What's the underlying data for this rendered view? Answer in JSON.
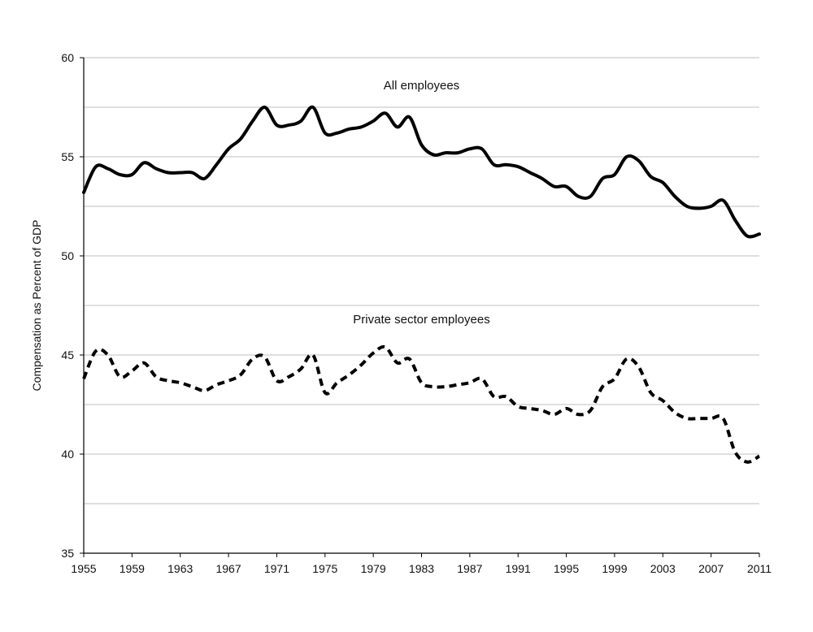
{
  "chart_data": {
    "type": "line",
    "title": "",
    "xlabel": "",
    "ylabel": "Compensation as Percent of GDP",
    "xlim": [
      1955,
      2011
    ],
    "ylim": [
      35,
      60
    ],
    "grid": true,
    "legend": "none",
    "x_ticks": [
      1955,
      1959,
      1963,
      1967,
      1971,
      1975,
      1979,
      1983,
      1987,
      1991,
      1995,
      1999,
      2003,
      2007,
      2011
    ],
    "y_ticks": [
      35,
      40,
      45,
      50,
      55,
      60
    ],
    "series": [
      {
        "name": "All employees",
        "style": "solid",
        "color": "#000000",
        "points": [
          [
            1955,
            53.2
          ],
          [
            1956,
            54.5
          ],
          [
            1957,
            54.4
          ],
          [
            1958,
            54.1
          ],
          [
            1959,
            54.1
          ],
          [
            1960,
            54.7
          ],
          [
            1961,
            54.4
          ],
          [
            1962,
            54.2
          ],
          [
            1963,
            54.2
          ],
          [
            1964,
            54.2
          ],
          [
            1965,
            53.9
          ],
          [
            1966,
            54.6
          ],
          [
            1967,
            55.4
          ],
          [
            1968,
            55.9
          ],
          [
            1969,
            56.8
          ],
          [
            1970,
            57.5
          ],
          [
            1971,
            56.6
          ],
          [
            1972,
            56.6
          ],
          [
            1973,
            56.8
          ],
          [
            1974,
            57.5
          ],
          [
            1975,
            56.2
          ],
          [
            1976,
            56.2
          ],
          [
            1977,
            56.4
          ],
          [
            1978,
            56.5
          ],
          [
            1979,
            56.8
          ],
          [
            1980,
            57.2
          ],
          [
            1981,
            56.5
          ],
          [
            1982,
            57.0
          ],
          [
            1983,
            55.6
          ],
          [
            1984,
            55.1
          ],
          [
            1985,
            55.2
          ],
          [
            1986,
            55.2
          ],
          [
            1987,
            55.4
          ],
          [
            1988,
            55.4
          ],
          [
            1989,
            54.6
          ],
          [
            1990,
            54.6
          ],
          [
            1991,
            54.5
          ],
          [
            1992,
            54.2
          ],
          [
            1993,
            53.9
          ],
          [
            1994,
            53.5
          ],
          [
            1995,
            53.5
          ],
          [
            1996,
            53.0
          ],
          [
            1997,
            53.0
          ],
          [
            1998,
            53.9
          ],
          [
            1999,
            54.1
          ],
          [
            2000,
            55.0
          ],
          [
            2001,
            54.8
          ],
          [
            2002,
            54.0
          ],
          [
            2003,
            53.7
          ],
          [
            2004,
            53.0
          ],
          [
            2005,
            52.5
          ],
          [
            2006,
            52.4
          ],
          [
            2007,
            52.5
          ],
          [
            2008,
            52.8
          ],
          [
            2009,
            51.8
          ],
          [
            2010,
            51.0
          ],
          [
            2011,
            51.1
          ]
        ]
      },
      {
        "name": "Private sector employees",
        "style": "dashed",
        "color": "#000000",
        "points": [
          [
            1955,
            43.8
          ],
          [
            1956,
            45.2
          ],
          [
            1957,
            45.0
          ],
          [
            1958,
            43.9
          ],
          [
            1959,
            44.2
          ],
          [
            1960,
            44.6
          ],
          [
            1961,
            43.9
          ],
          [
            1962,
            43.7
          ],
          [
            1963,
            43.6
          ],
          [
            1964,
            43.4
          ],
          [
            1965,
            43.2
          ],
          [
            1966,
            43.5
          ],
          [
            1967,
            43.7
          ],
          [
            1968,
            44.0
          ],
          [
            1969,
            44.8
          ],
          [
            1970,
            44.9
          ],
          [
            1971,
            43.7
          ],
          [
            1972,
            43.9
          ],
          [
            1973,
            44.3
          ],
          [
            1974,
            45.0
          ],
          [
            1975,
            43.1
          ],
          [
            1976,
            43.6
          ],
          [
            1977,
            44.0
          ],
          [
            1978,
            44.5
          ],
          [
            1979,
            45.1
          ],
          [
            1980,
            45.4
          ],
          [
            1981,
            44.6
          ],
          [
            1982,
            44.8
          ],
          [
            1983,
            43.6
          ],
          [
            1984,
            43.4
          ],
          [
            1985,
            43.4
          ],
          [
            1986,
            43.5
          ],
          [
            1987,
            43.6
          ],
          [
            1988,
            43.8
          ],
          [
            1989,
            42.9
          ],
          [
            1990,
            42.9
          ],
          [
            1991,
            42.4
          ],
          [
            1992,
            42.3
          ],
          [
            1993,
            42.2
          ],
          [
            1994,
            42.0
          ],
          [
            1995,
            42.3
          ],
          [
            1996,
            42.0
          ],
          [
            1997,
            42.2
          ],
          [
            1998,
            43.4
          ],
          [
            1999,
            43.8
          ],
          [
            2000,
            44.8
          ],
          [
            2001,
            44.4
          ],
          [
            2002,
            43.1
          ],
          [
            2003,
            42.7
          ],
          [
            2004,
            42.1
          ],
          [
            2005,
            41.8
          ],
          [
            2006,
            41.8
          ],
          [
            2007,
            41.8
          ],
          [
            2008,
            41.8
          ],
          [
            2009,
            40.1
          ],
          [
            2010,
            39.6
          ],
          [
            2011,
            39.9
          ]
        ]
      }
    ],
    "annotations": [
      {
        "text": "All employees",
        "x": 1983,
        "y": 58.4
      },
      {
        "text": "Private sector employees",
        "x": 1983,
        "y": 46.6
      }
    ]
  }
}
